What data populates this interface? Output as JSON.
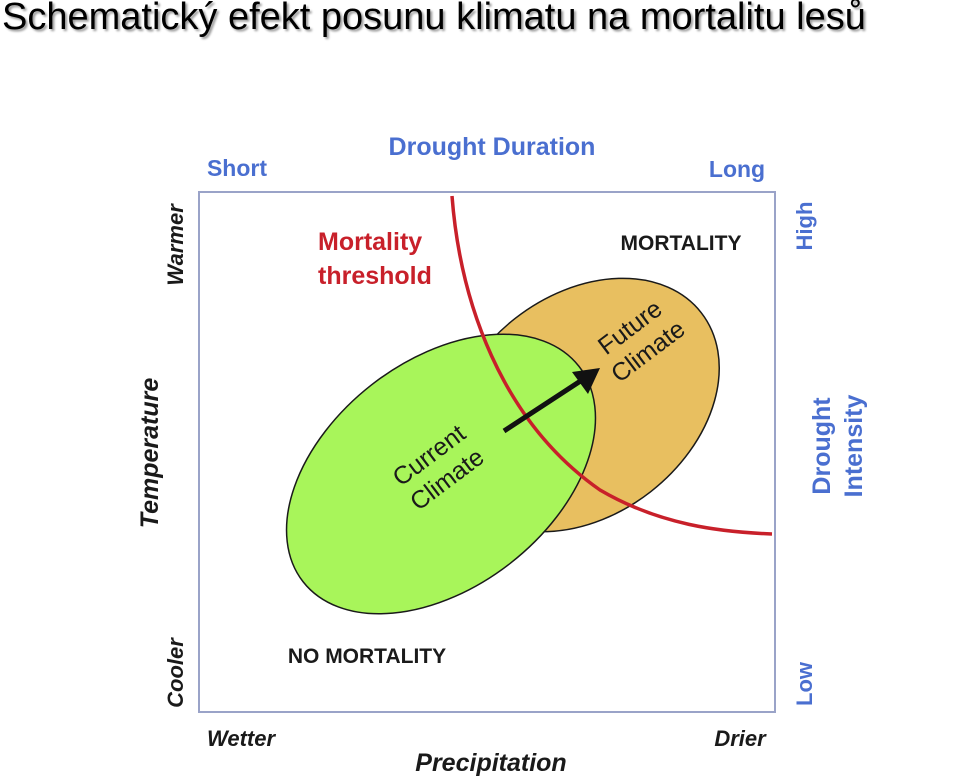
{
  "title": "Schematický efekt posunu klimatu na mortalitu lesů",
  "diagram": {
    "top_axis": {
      "title": "Drought Duration",
      "left_end": "Short",
      "right_end": "Long"
    },
    "right_axis": {
      "title_line1": "Drought",
      "title_line2": "Intensity",
      "top_end": "High",
      "bottom_end": "Low"
    },
    "left_axis": {
      "title": "Temperature",
      "top_end": "Warmer",
      "bottom_end": "Cooler"
    },
    "bottom_axis": {
      "title": "Precipitation",
      "left_end": "Wetter",
      "right_end": "Drier"
    },
    "threshold_label_line1": "Mortality",
    "threshold_label_line2": "threshold",
    "region_mortality": "MORTALITY",
    "region_no_mortality": "NO MORTALITY",
    "current_climate_line1": "Current",
    "current_climate_line2": "Climate",
    "future_climate_line1": "Future",
    "future_climate_line2": "Climate",
    "colors": {
      "axis_blue": "#4a6fd0",
      "threshold_red": "#c8202a",
      "current_fill": "#a8f55a",
      "future_fill": "#e8bf60",
      "frame": "#9aa3c8"
    }
  }
}
